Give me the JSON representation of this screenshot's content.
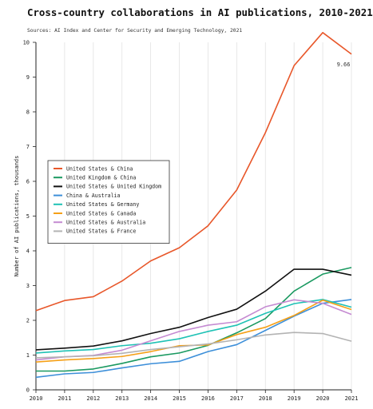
{
  "chart_data": {
    "type": "line",
    "title": "Cross-country collaborations in AI publications, 2010-2021",
    "subtitle": "Sources: AI Index and Center for Security and Emerging Technology, 2021",
    "xlabel": "",
    "ylabel": "Number of AI publications, thousands",
    "x": [
      2010,
      2011,
      2012,
      2013,
      2014,
      2015,
      2016,
      2017,
      2018,
      2019,
      2020,
      2021
    ],
    "ylim": [
      0,
      10
    ],
    "yticks": [
      0,
      1,
      2,
      3,
      4,
      5,
      6,
      7,
      8,
      9,
      10
    ],
    "grid": "vertical",
    "legend_position": "left",
    "annotation": {
      "text": "9.66",
      "series": "United States & China",
      "x": 2021,
      "y": 9.66
    },
    "series": [
      {
        "name": "United States & China",
        "color": "#e8572a",
        "values": [
          2.28,
          2.57,
          2.68,
          3.13,
          3.71,
          4.09,
          4.72,
          5.75,
          7.4,
          9.33,
          10.28,
          9.66
        ]
      },
      {
        "name": "United Kingdom & China",
        "color": "#1a9960",
        "values": [
          0.54,
          0.54,
          0.6,
          0.76,
          0.95,
          1.06,
          1.28,
          1.64,
          2.05,
          2.84,
          3.33,
          3.52
        ]
      },
      {
        "name": "United States & United Kingdom",
        "color": "#111111",
        "values": [
          1.15,
          1.2,
          1.26,
          1.41,
          1.62,
          1.8,
          2.08,
          2.32,
          2.84,
          3.47,
          3.47,
          3.3
        ]
      },
      {
        "name": "China & Australia",
        "color": "#3d8fd9",
        "values": [
          0.36,
          0.46,
          0.5,
          0.63,
          0.75,
          0.82,
          1.1,
          1.3,
          1.71,
          2.12,
          2.49,
          2.6
        ]
      },
      {
        "name": "United States & Germany",
        "color": "#1fc2b5",
        "values": [
          1.06,
          1.12,
          1.16,
          1.27,
          1.34,
          1.47,
          1.68,
          1.86,
          2.2,
          2.48,
          2.6,
          2.38
        ]
      },
      {
        "name": "United States & Canada",
        "color": "#f5a017",
        "values": [
          0.8,
          0.86,
          0.9,
          0.96,
          1.1,
          1.27,
          1.29,
          1.59,
          1.8,
          2.14,
          2.58,
          2.31
        ]
      },
      {
        "name": "United States & Australia",
        "color": "#c58bd2",
        "values": [
          0.86,
          0.95,
          0.99,
          1.14,
          1.41,
          1.68,
          1.86,
          1.96,
          2.39,
          2.59,
          2.49,
          2.17
        ]
      },
      {
        "name": "United States & France",
        "color": "#b3b3b3",
        "values": [
          0.92,
          0.95,
          0.98,
          1.05,
          1.16,
          1.24,
          1.32,
          1.44,
          1.58,
          1.65,
          1.62,
          1.4
        ]
      }
    ]
  }
}
